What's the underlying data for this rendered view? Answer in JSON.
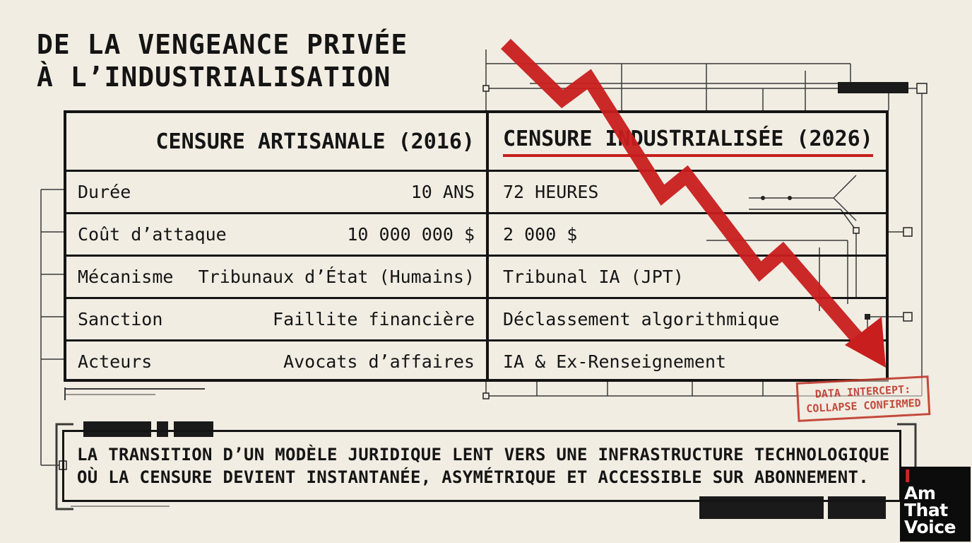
{
  "title": {
    "line1": "DE LA VENGEANCE PRIVÉE",
    "line2": "À L’INDUSTRIALISATION"
  },
  "table": {
    "headers": {
      "left": "CENSURE ARTISANALE (2016)",
      "right": "CENSURE INDUSTRIALISÉE (2026)"
    },
    "rows": [
      {
        "label": "Durée",
        "artisanal": "10 ANS",
        "industrial": "72 HEURES"
      },
      {
        "label": "Coût d’attaque",
        "artisanal": "10 000 000 $",
        "industrial": "2 000 $"
      },
      {
        "label": "Mécanisme",
        "artisanal": "Tribunaux d’État (Humains)",
        "industrial": "Tribunal IA (JPT)"
      },
      {
        "label": "Sanction",
        "artisanal": "Faillite financière",
        "industrial": "Déclassement algorithmique"
      },
      {
        "label": "Acteurs",
        "artisanal": "Avocats d’affaires",
        "industrial": "IA & Ex-Renseignement"
      }
    ]
  },
  "stamp": {
    "line1": "DATA INTERCEPT:",
    "line2": "COLLAPSE CONFIRMED"
  },
  "footer": {
    "line1": "LA TRANSITION D’UN MODÈLE JURIDIQUE LENT VERS UNE INFRASTRUCTURE TECHNOLOGIQUE",
    "line2": "OÙ LA CENSURE DEVIENT INSTANTANÉE, ASYMÉTRIQUE ET ACCESSIBLE SUR ABONNEMENT."
  },
  "logo": {
    "letters": [
      "I",
      "Am",
      "That",
      "Voice"
    ],
    "accent_color": "#d0262a"
  },
  "colors": {
    "background": "#f1ede3",
    "ink": "#141414",
    "accent_red": "#c81e1e"
  }
}
